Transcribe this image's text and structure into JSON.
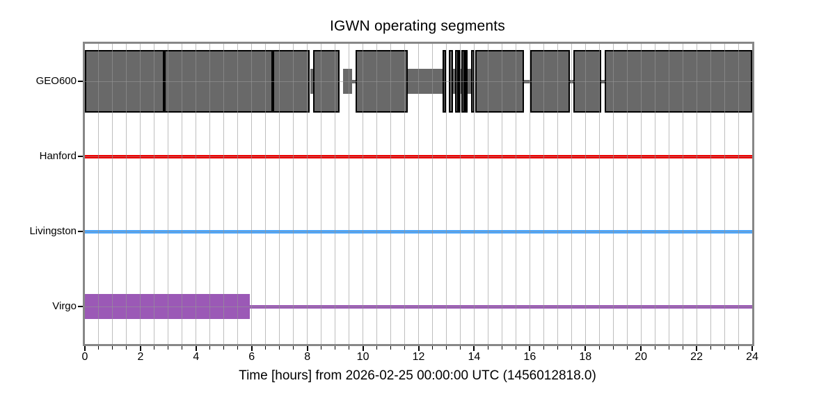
{
  "chart_data": {
    "type": "segment-timeline-broken-bar",
    "title": "IGWN operating segments",
    "xlabel": "Time [hours] from 2026-02-25 00:00:00 UTC (1456012818.0)",
    "start_utc": "2026-02-25 00:00:00 UTC",
    "gps_start": "1456012818.0",
    "xlim": [
      0,
      24
    ],
    "xtick_major_step": 2,
    "xtick_minor_step": 0.5,
    "xtick_labels": [
      "0",
      "2",
      "4",
      "6",
      "8",
      "10",
      "12",
      "14",
      "16",
      "18",
      "20",
      "22",
      "24"
    ],
    "grid": {
      "vertical_every_hours": 0.5,
      "horizontal_at_row_centers": true,
      "color": "#969696"
    },
    "axis_color": "#878787",
    "background": "#ffffff",
    "legend_position": "none",
    "rows": [
      {
        "label": "GEO600",
        "fill": "#696969",
        "edge": "#000000",
        "active_segments_hours": [
          [
            0,
            2.85
          ],
          [
            2.85,
            6.76
          ],
          [
            6.76,
            8.08
          ],
          [
            8.22,
            9.17
          ],
          [
            9.74,
            11.62
          ],
          [
            12.87,
            12.95
          ],
          [
            13.08,
            13.25
          ],
          [
            13.32,
            13.36
          ],
          [
            13.41,
            13.44
          ],
          [
            13.54,
            13.62
          ],
          [
            13.66,
            13.72
          ],
          [
            13.9,
            13.99
          ],
          [
            14.03,
            15.78
          ],
          [
            16.02,
            17.44
          ],
          [
            17.56,
            18.56
          ],
          [
            18.7,
            24
          ]
        ],
        "known_band_segments_hours": [
          [
            8.1,
            8.2
          ],
          [
            9.28,
            9.62
          ],
          [
            11.62,
            12.95
          ],
          [
            13.25,
            13.63
          ],
          [
            13.72,
            13.99
          ]
        ],
        "baseline_segments_hours": [
          [
            9.62,
            9.74
          ],
          [
            15.78,
            16.02
          ],
          [
            17.44,
            17.56
          ],
          [
            18.56,
            18.7
          ]
        ]
      },
      {
        "label": "Hanford",
        "fill": "#ee0000",
        "edge": "#ee0000",
        "active_segments_hours": [],
        "known_band_segments_hours": [],
        "baseline_segments_hours": [
          [
            0,
            24
          ]
        ]
      },
      {
        "label": "Livingston",
        "fill": "#4ba6ff",
        "edge": "#4ba6ff",
        "active_segments_hours": [],
        "known_band_segments_hours": [],
        "baseline_segments_hours": [
          [
            0,
            24
          ]
        ]
      },
      {
        "label": "Virgo",
        "fill": "#9b59b6",
        "edge": "#9b59b6",
        "active_segments_hours": [],
        "known_band_segments_hours": [
          [
            0,
            5.92
          ]
        ],
        "baseline_segments_hours": [
          [
            5.92,
            24
          ]
        ]
      }
    ]
  }
}
